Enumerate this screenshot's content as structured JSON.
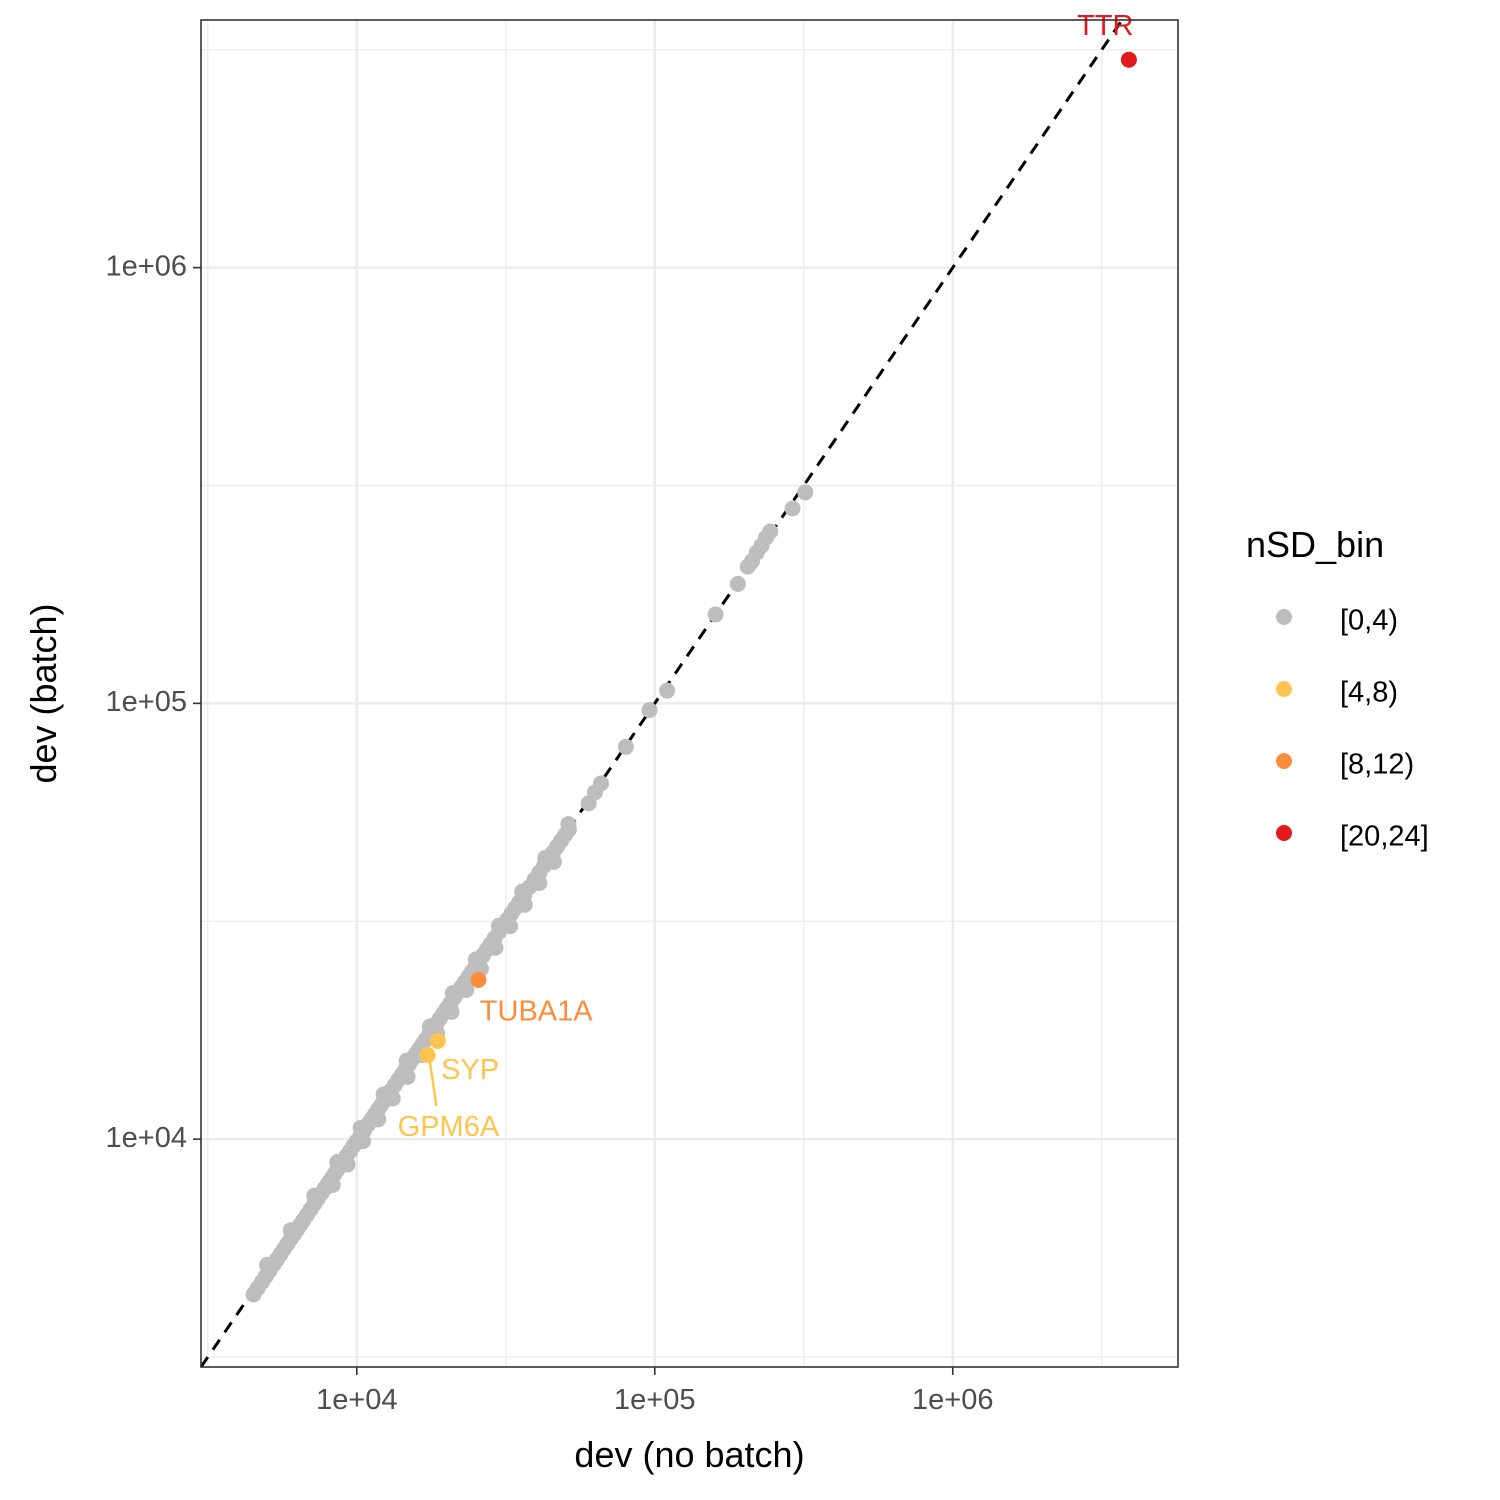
{
  "chart_data": {
    "type": "scatter",
    "xlabel": "dev (no batch)",
    "ylabel": "dev (batch)",
    "x_scale": "log10",
    "y_scale": "log10",
    "xlim": [
      3000,
      5700000
    ],
    "ylim": [
      3000,
      3700000
    ],
    "x_ticks": [
      10000,
      100000,
      1000000
    ],
    "x_tick_labels": [
      "1e+04",
      "1e+05",
      "1e+06"
    ],
    "y_ticks": [
      10000,
      100000,
      1000000
    ],
    "y_tick_labels": [
      "1e+04",
      "1e+05",
      "1e+06"
    ],
    "grid": true,
    "reference_line": {
      "type": "identity",
      "style": "dashed",
      "color": "#000000"
    },
    "legend": {
      "title": "nSD_bin",
      "position": "right",
      "entries": [
        {
          "label": "[0,4)",
          "color": "#bdbdbd"
        },
        {
          "label": "[4,8)",
          "color": "#fec44f"
        },
        {
          "label": "[8,12)",
          "color": "#fd8d3c"
        },
        {
          "label": "[20,24]",
          "color": "#e31a1c"
        }
      ]
    },
    "series": [
      {
        "name": "[0,4)",
        "color": "#bdbdbd",
        "points": [
          [
            4500,
            4400
          ],
          [
            4650,
            4550
          ],
          [
            4800,
            4700
          ],
          [
            4950,
            4850
          ],
          [
            5100,
            5000
          ],
          [
            5250,
            5150
          ],
          [
            5400,
            5300
          ],
          [
            5550,
            5450
          ],
          [
            5700,
            5600
          ],
          [
            5850,
            5750
          ],
          [
            6000,
            5900
          ],
          [
            6150,
            6050
          ],
          [
            6300,
            6200
          ],
          [
            6450,
            6350
          ],
          [
            6600,
            6500
          ],
          [
            6800,
            6700
          ],
          [
            7000,
            6900
          ],
          [
            7200,
            7100
          ],
          [
            7400,
            7300
          ],
          [
            7600,
            7500
          ],
          [
            7800,
            7700
          ],
          [
            8000,
            7900
          ],
          [
            8200,
            8100
          ],
          [
            8400,
            8300
          ],
          [
            8600,
            8500
          ],
          [
            8800,
            8700
          ],
          [
            9000,
            8900
          ],
          [
            9250,
            9150
          ],
          [
            9500,
            9400
          ],
          [
            9750,
            9650
          ],
          [
            10000,
            9900
          ],
          [
            10300,
            10200
          ],
          [
            10600,
            10500
          ],
          [
            10900,
            10800
          ],
          [
            11200,
            11100
          ],
          [
            11500,
            11400
          ],
          [
            11800,
            11700
          ],
          [
            12100,
            12000
          ],
          [
            12400,
            12300
          ],
          [
            12700,
            12600
          ],
          [
            13000,
            12900
          ],
          [
            13400,
            13300
          ],
          [
            13800,
            13700
          ],
          [
            14200,
            14100
          ],
          [
            14600,
            14500
          ],
          [
            15000,
            14900
          ],
          [
            15400,
            15300
          ],
          [
            15800,
            15700
          ],
          [
            16200,
            16100
          ],
          [
            16600,
            16500
          ],
          [
            17000,
            16900
          ],
          [
            17500,
            17400
          ],
          [
            18000,
            17900
          ],
          [
            18500,
            18400
          ],
          [
            19000,
            18900
          ],
          [
            19500,
            19400
          ],
          [
            20000,
            19900
          ],
          [
            20600,
            20500
          ],
          [
            21200,
            21100
          ],
          [
            21800,
            21700
          ],
          [
            22400,
            22300
          ],
          [
            23000,
            22900
          ],
          [
            23700,
            23600
          ],
          [
            24400,
            24300
          ],
          [
            25100,
            25000
          ],
          [
            25800,
            25700
          ],
          [
            26500,
            26400
          ],
          [
            27300,
            27200
          ],
          [
            28100,
            28000
          ],
          [
            29000,
            28900
          ],
          [
            30000,
            29900
          ],
          [
            31000,
            30900
          ],
          [
            32000,
            31900
          ],
          [
            33000,
            32900
          ],
          [
            34000,
            33900
          ],
          [
            35000,
            34900
          ],
          [
            36500,
            36400
          ],
          [
            38000,
            37900
          ],
          [
            39500,
            39400
          ],
          [
            41000,
            40900
          ],
          [
            42500,
            42400
          ],
          [
            44000,
            43900
          ],
          [
            45500,
            45400
          ],
          [
            47000,
            46900
          ],
          [
            48500,
            48400
          ],
          [
            50000,
            49900
          ],
          [
            51500,
            51400
          ],
          [
            8300,
            7850
          ],
          [
            9300,
            8750
          ],
          [
            10500,
            9900
          ],
          [
            11800,
            11100
          ],
          [
            13200,
            12400
          ],
          [
            14800,
            13900
          ],
          [
            16600,
            15600
          ],
          [
            18600,
            17500
          ],
          [
            20800,
            19600
          ],
          [
            23300,
            22000
          ],
          [
            26100,
            24600
          ],
          [
            29200,
            27500
          ],
          [
            32700,
            30800
          ],
          [
            36600,
            34500
          ],
          [
            41000,
            38700
          ],
          [
            45900,
            43300
          ],
          [
            5000,
            5150
          ],
          [
            6000,
            6180
          ],
          [
            7200,
            7420
          ],
          [
            8600,
            8860
          ],
          [
            10300,
            10610
          ],
          [
            12300,
            12670
          ],
          [
            14700,
            15140
          ],
          [
            17600,
            18130
          ],
          [
            21000,
            21630
          ],
          [
            25100,
            25850
          ],
          [
            30000,
            30900
          ],
          [
            35900,
            36980
          ],
          [
            42900,
            44190
          ],
          [
            51300,
            52840
          ],
          [
            60000,
            59000
          ],
          [
            63000,
            62500
          ],
          [
            66000,
            65500
          ],
          [
            80000,
            79500
          ],
          [
            96000,
            96500
          ],
          [
            110000,
            107000
          ],
          [
            160000,
            160000
          ],
          [
            190000,
            188000
          ],
          [
            205000,
            206000
          ],
          [
            212000,
            212000
          ],
          [
            220000,
            222000
          ],
          [
            228000,
            230000
          ],
          [
            236000,
            240000
          ],
          [
            244000,
            248000
          ],
          [
            290000,
            280000
          ],
          [
            320000,
            305000
          ]
        ]
      },
      {
        "name": "[4,8)",
        "color": "#fec44f",
        "points": [
          [
            17300,
            15600
          ],
          [
            18700,
            16800
          ]
        ],
        "labels": [
          {
            "text": "GPM6A",
            "point": 0,
            "label_pos": [
              20300,
              10600
            ],
            "segment": true
          },
          {
            "text": "SYP",
            "point": 1,
            "label_pos": [
              24000,
              14300
            ],
            "segment": false
          }
        ]
      },
      {
        "name": "[8,12)",
        "color": "#fd8d3c",
        "points": [
          [
            25600,
            23200
          ]
        ],
        "labels": [
          {
            "text": "TUBA1A",
            "point": 0,
            "label_pos": [
              40000,
              19500
            ],
            "segment": false
          }
        ]
      },
      {
        "name": "[20,24]",
        "color": "#e31a1c",
        "points": [
          [
            3900000,
            3000000
          ]
        ],
        "labels": [
          {
            "text": "TTR",
            "point": 0,
            "label_pos": [
              3250000,
              3560000
            ],
            "segment": false
          }
        ]
      }
    ]
  }
}
